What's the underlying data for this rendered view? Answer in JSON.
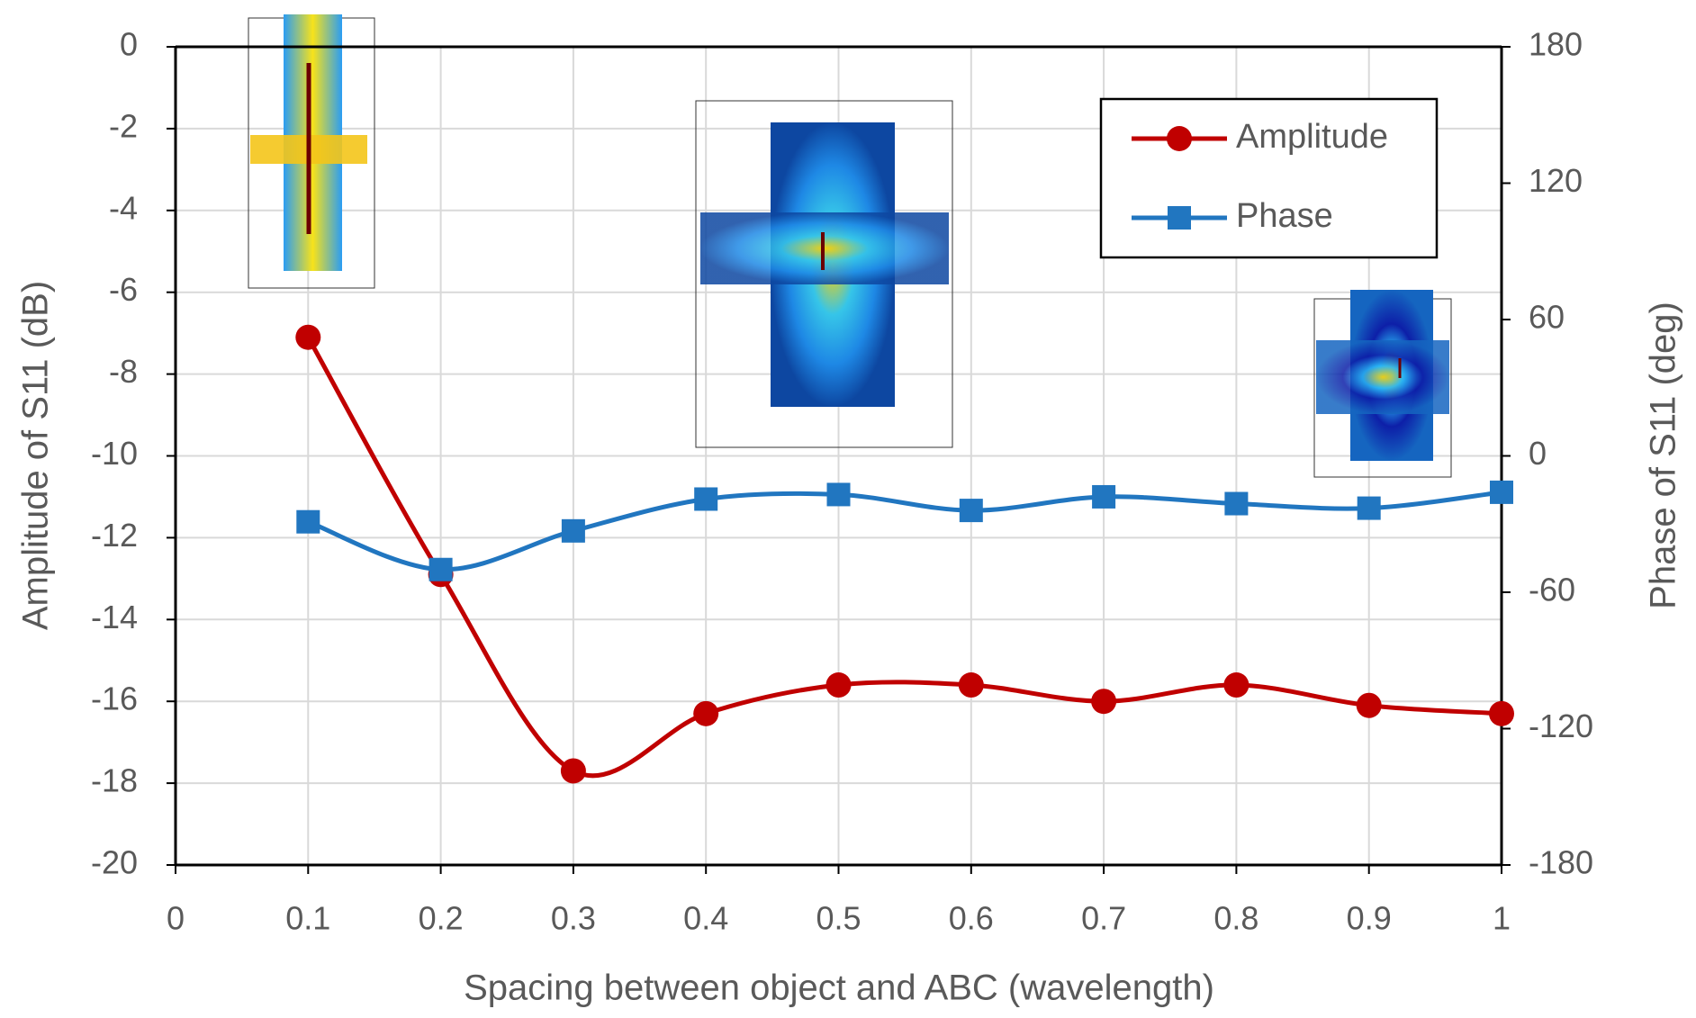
{
  "chart_data": {
    "type": "line",
    "x": [
      0.1,
      0.2,
      0.3,
      0.4,
      0.5,
      0.6,
      0.7,
      0.8,
      0.9,
      1
    ],
    "x_label": "Spacing between object and ABC (wavelength)",
    "y_label": "Amplitude of S11 (dB)",
    "y2_label": "Phase of S11 (deg)",
    "xlim": [
      0,
      1
    ],
    "xticks": [
      0,
      0.1,
      0.2,
      0.3,
      0.4,
      0.5,
      0.6,
      0.7,
      0.8,
      0.9,
      1
    ],
    "ylim": [
      -20,
      0
    ],
    "yticks": [
      -20,
      -18,
      -16,
      -14,
      -12,
      -10,
      -8,
      -6,
      -4,
      -2,
      0
    ],
    "y2lim": [
      -180,
      180
    ],
    "y2ticks": [
      -180,
      -120,
      -60,
      0,
      60,
      120,
      180
    ],
    "grid": true,
    "legend": "upper right",
    "series": [
      {
        "name": "Amplitude",
        "color": "#c00000",
        "marker": "circle",
        "values": [
          -7.1,
          -12.9,
          -17.7,
          -16.3,
          -15.6,
          -15.6,
          -16.0,
          -15.6,
          -16.1,
          -16.3
        ]
      },
      {
        "name": "Phase",
        "color": "#2176c0",
        "marker": "square",
        "axis": "y2",
        "values": [
          -29,
          -50,
          -33,
          -19,
          -17,
          -24,
          -18,
          -21,
          -23,
          -16
        ]
      }
    ]
  }
}
